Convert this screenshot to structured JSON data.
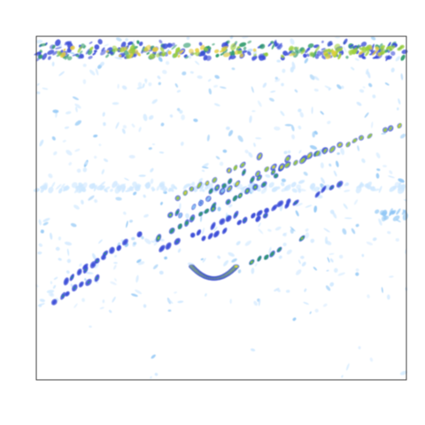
{
  "chart_data": {
    "type": "heatmap",
    "title": "",
    "xlabel": "",
    "ylabel": "",
    "grid": false,
    "legend": "none",
    "colorscale": [
      {
        "level": 1,
        "color": "#cfe8ff"
      },
      {
        "level": 2,
        "color": "#8fc6f5"
      },
      {
        "level": 3,
        "color": "#3d4fd8"
      },
      {
        "level": 4,
        "color": "#2e9a6a"
      },
      {
        "level": 5,
        "color": "#9ccf3a"
      },
      {
        "level": 6,
        "color": "#e7cf3f"
      },
      {
        "level": 7,
        "color": "#f09b2a"
      }
    ],
    "xlim": [
      0,
      1
    ],
    "ylim": [
      0,
      1
    ],
    "bands": [
      {
        "name": "top-band",
        "x0": 0.0,
        "x1": 1.0,
        "y": 0.96,
        "thickness": 0.05,
        "level": 3,
        "density": 0.9
      },
      {
        "name": "top-band-inner",
        "x0": 0.05,
        "x1": 0.99,
        "y": 0.955,
        "thickness": 0.03,
        "level": 5,
        "density": 0.45
      },
      {
        "name": "faint-band-mid",
        "x0": 0.0,
        "x1": 1.0,
        "y": 0.56,
        "thickness": 0.02,
        "level": 1,
        "density": 0.6
      },
      {
        "name": "faint-band-right",
        "x0": 0.92,
        "x1": 1.0,
        "y": 0.48,
        "thickness": 0.02,
        "level": 2,
        "density": 0.7
      }
    ],
    "ridges": [
      {
        "x0": 0.05,
        "y0": 0.23,
        "x1": 0.18,
        "y1": 0.31,
        "level": 4
      },
      {
        "x0": 0.08,
        "y0": 0.29,
        "x1": 0.22,
        "y1": 0.38,
        "level": 4
      },
      {
        "x0": 0.13,
        "y0": 0.33,
        "x1": 0.28,
        "y1": 0.42,
        "level": 4
      },
      {
        "x0": 0.33,
        "y0": 0.41,
        "x1": 0.5,
        "y1": 0.52,
        "level": 5
      },
      {
        "x0": 0.36,
        "y0": 0.48,
        "x1": 0.56,
        "y1": 0.6,
        "level": 5
      },
      {
        "x0": 0.38,
        "y0": 0.53,
        "x1": 0.6,
        "y1": 0.65,
        "level": 6
      },
      {
        "x0": 0.42,
        "y0": 0.47,
        "x1": 0.65,
        "y1": 0.59,
        "level": 5
      },
      {
        "x0": 0.5,
        "y0": 0.55,
        "x1": 0.72,
        "y1": 0.66,
        "level": 6
      },
      {
        "x0": 0.58,
        "y0": 0.58,
        "x1": 0.8,
        "y1": 0.68,
        "level": 5
      },
      {
        "x0": 0.66,
        "y0": 0.62,
        "x1": 0.9,
        "y1": 0.71,
        "level": 6
      },
      {
        "x0": 0.74,
        "y0": 0.65,
        "x1": 1.0,
        "y1": 0.75,
        "level": 6
      },
      {
        "x0": 0.34,
        "y0": 0.38,
        "x1": 0.58,
        "y1": 0.5,
        "level": 4
      },
      {
        "x0": 0.45,
        "y0": 0.41,
        "x1": 0.68,
        "y1": 0.52,
        "level": 4
      },
      {
        "x0": 0.58,
        "y0": 0.34,
        "x1": 0.74,
        "y1": 0.42,
        "level": 5
      },
      {
        "x0": 0.39,
        "y0": 0.48,
        "x1": 0.52,
        "y1": 0.56,
        "level": 3
      },
      {
        "x0": 0.6,
        "y0": 0.47,
        "x1": 0.82,
        "y1": 0.57,
        "level": 4
      }
    ],
    "arc": {
      "x0": 0.42,
      "y0": 0.33,
      "xc": 0.48,
      "yc": 0.26,
      "x1": 0.54,
      "y1": 0.33,
      "level": 5
    },
    "scatter_seed": 17,
    "scatter_count": 520
  }
}
